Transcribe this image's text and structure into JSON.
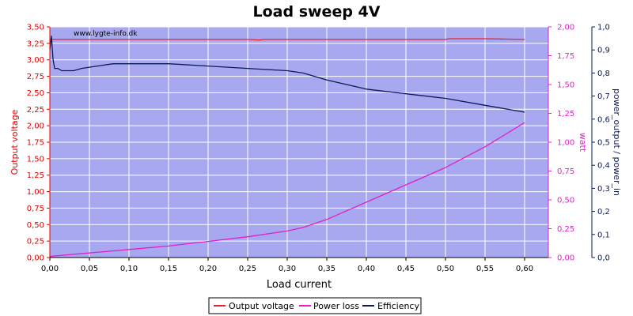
{
  "chart_data": {
    "type": "line",
    "title": "Load sweep 4V",
    "xlabel": "Load current",
    "ylabel_left": "Output voltage",
    "ylabel_right1": "watt",
    "ylabel_right2": "power_output / power_in",
    "watermark": "www.lygte-info.dk",
    "xlim": [
      0,
      0.63
    ],
    "x_ticks": [
      "0,00",
      "0,05",
      "0,10",
      "0,15",
      "0,20",
      "0,25",
      "0,30",
      "0,35",
      "0,40",
      "0,45",
      "0,50",
      "0,55",
      "0,60"
    ],
    "ylim_left": [
      0,
      3.5
    ],
    "y_ticks_left": [
      "0,00",
      "0,25",
      "0,50",
      "0,75",
      "1,00",
      "1,25",
      "1,50",
      "1,75",
      "2,00",
      "2,25",
      "2,50",
      "2,75",
      "3,00",
      "3,25",
      "3,50"
    ],
    "ylim_right1": [
      0,
      2.0
    ],
    "y_ticks_right1": [
      "0,00",
      "0,25",
      "0,50",
      "0,75",
      "1,00",
      "1,25",
      "1,50",
      "1,75",
      "2,00"
    ],
    "ylim_right2": [
      0,
      1.0
    ],
    "y_ticks_right2": [
      "0,0",
      "0,1",
      "0,2",
      "0,3",
      "0,4",
      "0,5",
      "0,6",
      "0,7",
      "0,8",
      "0,9",
      "1,0"
    ],
    "grid": true,
    "legend_position": "bottom",
    "colors": {
      "plot_bg": "#a8a8f0",
      "grid": "#ffffff",
      "output_voltage": "#e8232b",
      "power_loss": "#e020c8",
      "efficiency": "#0a1a55",
      "left_axis": "#e00000",
      "right1_axis": "#e020c8",
      "right2_axis": "#0a1a55"
    },
    "series": [
      {
        "name": "Output voltage",
        "axis": "left",
        "points": [
          [
            0.0,
            3.31
          ],
          [
            0.05,
            3.31
          ],
          [
            0.1,
            3.31
          ],
          [
            0.15,
            3.31
          ],
          [
            0.2,
            3.31
          ],
          [
            0.25,
            3.31
          ],
          [
            0.265,
            3.3
          ],
          [
            0.27,
            3.31
          ],
          [
            0.3,
            3.31
          ],
          [
            0.35,
            3.31
          ],
          [
            0.4,
            3.31
          ],
          [
            0.45,
            3.31
          ],
          [
            0.5,
            3.31
          ],
          [
            0.505,
            3.32
          ],
          [
            0.55,
            3.32
          ],
          [
            0.6,
            3.31
          ]
        ]
      },
      {
        "name": "Power loss",
        "axis": "right1",
        "points": [
          [
            0.0,
            0.01
          ],
          [
            0.05,
            0.04
          ],
          [
            0.1,
            0.07
          ],
          [
            0.15,
            0.1
          ],
          [
            0.2,
            0.14
          ],
          [
            0.25,
            0.18
          ],
          [
            0.3,
            0.23
          ],
          [
            0.32,
            0.26
          ],
          [
            0.35,
            0.33
          ],
          [
            0.4,
            0.48
          ],
          [
            0.45,
            0.63
          ],
          [
            0.5,
            0.78
          ],
          [
            0.55,
            0.96
          ],
          [
            0.6,
            1.17
          ]
        ]
      },
      {
        "name": "Efficiency",
        "axis": "right2",
        "points": [
          [
            0.0,
            0.9
          ],
          [
            0.002,
            0.96
          ],
          [
            0.004,
            0.86
          ],
          [
            0.006,
            0.82
          ],
          [
            0.01,
            0.82
          ],
          [
            0.015,
            0.81
          ],
          [
            0.03,
            0.81
          ],
          [
            0.04,
            0.82
          ],
          [
            0.06,
            0.83
          ],
          [
            0.08,
            0.84
          ],
          [
            0.1,
            0.84
          ],
          [
            0.14,
            0.84
          ],
          [
            0.15,
            0.84
          ],
          [
            0.2,
            0.83
          ],
          [
            0.25,
            0.82
          ],
          [
            0.3,
            0.81
          ],
          [
            0.32,
            0.8
          ],
          [
            0.35,
            0.77
          ],
          [
            0.4,
            0.73
          ],
          [
            0.45,
            0.71
          ],
          [
            0.5,
            0.69
          ],
          [
            0.55,
            0.66
          ],
          [
            0.6,
            0.63
          ]
        ]
      }
    ]
  }
}
